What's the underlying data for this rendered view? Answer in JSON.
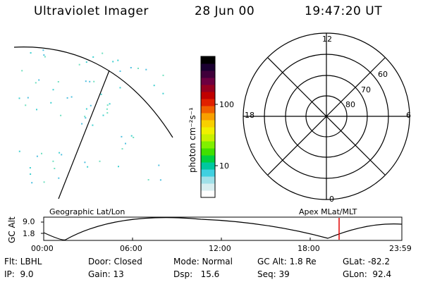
{
  "header": {
    "title": "Ultraviolet Imager",
    "date": "28 Jun 00",
    "time": "19:47:20 UT"
  },
  "colorbar": {
    "label": "photon cm⁻²s⁻¹",
    "ticks": [
      "100",
      "10"
    ],
    "colors": [
      "#000000",
      "#1a0030",
      "#40003a",
      "#6d0040",
      "#960020",
      "#c00000",
      "#e02000",
      "#f06000",
      "#f8a000",
      "#f8d000",
      "#f0f000",
      "#c8f000",
      "#80f000",
      "#40e000",
      "#00d040",
      "#00c8a0",
      "#40d0e0",
      "#a0e0e8",
      "#d8eef0",
      "#ffffff"
    ]
  },
  "polar": {
    "top": "12",
    "left": "18",
    "right": "6",
    "bottom": "0",
    "rings": [
      "60",
      "70",
      "80"
    ]
  },
  "timeline": {
    "left_title": "Geographic Lat/Lon",
    "right_title": "Apex MLat/MLT",
    "axis_label": "GC Alt",
    "y_ticks": [
      "9.0",
      "1.8"
    ],
    "x_ticks": [
      "00:00",
      "06:00",
      "12:00",
      "18:00",
      "23:59"
    ],
    "marker_color": "#e00000",
    "orbit_color": "#000000"
  },
  "info": {
    "flt": "Flt: LBHL",
    "ip": "IP:  9.0",
    "door": "Door: Closed",
    "gain": "Gain: 13",
    "mode": "Mode: Normal",
    "dsp": "Dsp:   15.6",
    "gcalt": "GC Alt: 1.8 Re",
    "seq": "Seq: 39",
    "glat": "GLat: -82.2",
    "glon": "GLon:  92.4"
  }
}
